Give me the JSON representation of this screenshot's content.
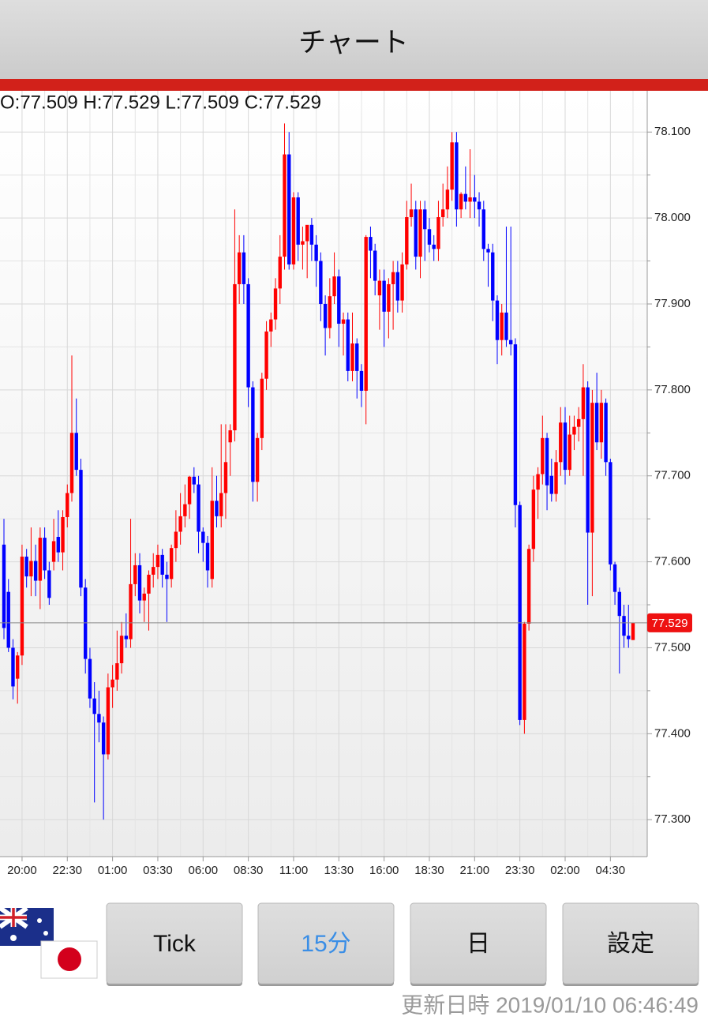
{
  "header": {
    "title": "チャート"
  },
  "chart_data": {
    "type": "candlestick",
    "ohlc_label": "O:77.509 H:77.529 L:77.509 C:77.529",
    "categories": [
      null,
      null,
      null,
      null,
      "20:00",
      null,
      null,
      null,
      null,
      null,
      null,
      null,
      null,
      null,
      "22:30",
      null,
      null,
      null,
      null,
      null,
      null,
      null,
      null,
      null,
      "01:00",
      null,
      null,
      null,
      null,
      null,
      null,
      null,
      null,
      null,
      "03:30",
      null,
      null,
      null,
      null,
      null,
      null,
      null,
      null,
      null,
      "06:00",
      null,
      null,
      null,
      null,
      null,
      null,
      null,
      null,
      null,
      "08:30",
      null,
      null,
      null,
      null,
      null,
      null,
      null,
      null,
      null,
      "11:00",
      null,
      null,
      null,
      null,
      null,
      null,
      null,
      null,
      null,
      "13:30",
      null,
      null,
      null,
      null,
      null,
      null,
      null,
      null,
      null,
      "16:00",
      null,
      null,
      null,
      null,
      null,
      null,
      null,
      null,
      null,
      "18:30",
      null,
      null,
      null,
      null,
      null,
      null,
      null,
      null,
      null,
      "21:00",
      null,
      null,
      null,
      null,
      null,
      null,
      null,
      null,
      null,
      "23:30",
      null,
      null,
      null,
      null,
      null,
      null,
      null,
      null,
      null,
      "02:00",
      null,
      null,
      null,
      null,
      null,
      null,
      null,
      null,
      null,
      "04:30",
      null,
      null,
      null,
      null,
      null
    ],
    "open": [
      77.62,
      77.565,
      77.5,
      77.464,
      77.491,
      77.606,
      77.583,
      77.601,
      77.578,
      77.628,
      77.59,
      77.6,
      77.629,
      77.611,
      77.652,
      77.68,
      77.75,
      77.707,
      77.57,
      77.487,
      77.441,
      77.423,
      77.413,
      77.376,
      77.454,
      77.463,
      77.482,
      77.514,
      77.51,
      77.574,
      77.596,
      77.555,
      77.563,
      77.585,
      77.594,
      77.608,
      77.585,
      77.58,
      77.616,
      77.635,
      77.653,
      77.667,
      77.699,
      77.69,
      77.635,
      77.622,
      77.58,
      77.671,
      77.653,
      77.68,
      77.739,
      77.753,
      77.923,
      77.96,
      77.923,
      77.803,
      77.693,
      77.744,
      77.813,
      77.868,
      77.882,
      77.918,
      77.955,
      78.074,
      77.946,
      78.024,
      77.969,
      77.973,
      77.992,
      77.969,
      77.95,
      77.9,
      77.872,
      77.909,
      77.932,
      77.877,
      77.882,
      77.822,
      77.854,
      77.822,
      77.799,
      77.978,
      77.962,
      77.91,
      77.927,
      77.891,
      77.923,
      77.937,
      77.904,
      77.946,
      78.001,
      78.01,
      77.955,
      78.01,
      77.987,
      77.969,
      77.964,
      78.001,
      78.01,
      78.033,
      78.088,
      78.01,
      78.028,
      78.019,
      78.024,
      78.019,
      78.01,
      77.964,
      77.96,
      77.904,
      77.858,
      77.89,
      77.858,
      77.853,
      77.666,
      77.416,
      77.528,
      77.615,
      77.684,
      77.702,
      77.744,
      77.7,
      77.679,
      77.716,
      77.762,
      77.707,
      77.748,
      77.757,
      77.766,
      77.803,
      77.634,
      77.785,
      77.739,
      77.785,
      77.716,
      77.597,
      77.565,
      77.537,
      77.514,
      77.509
    ],
    "high": [
      77.65,
      77.58,
      77.51,
      77.495,
      77.62,
      77.615,
      77.64,
      77.62,
      77.64,
      77.64,
      77.6,
      77.65,
      77.66,
      77.66,
      77.69,
      77.84,
      77.79,
      77.72,
      77.58,
      77.5,
      77.46,
      77.45,
      77.42,
      77.47,
      77.48,
      77.52,
      77.53,
      77.54,
      77.65,
      77.61,
      77.61,
      77.57,
      77.59,
      77.61,
      77.62,
      77.615,
      77.6,
      77.62,
      77.66,
      77.68,
      77.69,
      77.7,
      77.71,
      77.7,
      77.64,
      77.63,
      77.71,
      77.7,
      77.76,
      77.76,
      77.76,
      78.01,
      77.98,
      77.98,
      77.93,
      77.81,
      77.75,
      77.82,
      77.88,
      77.89,
      77.93,
      77.98,
      78.11,
      78.1,
      78.03,
      78.03,
      77.99,
      77.99,
      78.0,
      77.98,
      77.96,
      77.91,
      77.93,
      77.96,
      77.94,
      77.89,
      77.89,
      77.89,
      77.86,
      77.83,
      77.98,
      77.99,
      77.97,
      77.94,
      77.94,
      77.93,
      77.95,
      77.95,
      77.96,
      78.02,
      78.04,
      78.02,
      78.02,
      78.02,
      78.0,
      77.98,
      78.02,
      78.04,
      78.06,
      78.1,
      78.1,
      78.03,
      78.06,
      78.08,
      78.05,
      78.03,
      78.02,
      77.97,
      77.97,
      77.91,
      77.9,
      77.99,
      77.99,
      77.86,
      77.67,
      77.53,
      77.62,
      77.7,
      77.71,
      77.77,
      77.75,
      77.72,
      77.73,
      77.78,
      77.78,
      77.77,
      77.77,
      77.78,
      77.83,
      77.81,
      77.8,
      77.82,
      77.8,
      77.79,
      77.72,
      77.6,
      77.57,
      77.55,
      77.55,
      77.529
    ],
    "low": [
      77.51,
      77.495,
      77.44,
      77.435,
      77.48,
      77.57,
      77.56,
      77.56,
      77.545,
      77.58,
      77.55,
      77.59,
      77.6,
      77.59,
      77.64,
      77.67,
      77.7,
      77.56,
      77.47,
      77.43,
      77.32,
      77.39,
      77.3,
      77.37,
      77.43,
      77.45,
      77.47,
      77.5,
      77.5,
      77.56,
      77.54,
      77.53,
      77.52,
      77.57,
      77.58,
      77.57,
      77.53,
      77.57,
      77.6,
      77.62,
      77.64,
      77.65,
      77.68,
      77.61,
      77.6,
      77.57,
      77.57,
      77.64,
      77.64,
      77.65,
      77.7,
      77.74,
      77.9,
      77.9,
      77.78,
      77.67,
      77.67,
      77.73,
      77.8,
      77.85,
      77.87,
      77.9,
      77.94,
      77.94,
      77.94,
      77.95,
      77.94,
      77.93,
      77.95,
      77.92,
      77.88,
      77.84,
      77.86,
      77.9,
      77.85,
      77.84,
      77.81,
      77.81,
      77.79,
      77.78,
      77.76,
      77.93,
      77.91,
      77.87,
      77.85,
      77.86,
      77.87,
      77.89,
      77.89,
      77.94,
      77.99,
      77.94,
      77.93,
      77.95,
      77.96,
      77.95,
      77.95,
      77.99,
      78.0,
      78.02,
      77.99,
      78.0,
      78.01,
      78.0,
      78.0,
      77.99,
      77.95,
      77.92,
      77.88,
      77.83,
      77.84,
      77.85,
      77.84,
      77.64,
      77.41,
      77.4,
      77.52,
      77.6,
      77.65,
      77.69,
      77.66,
      77.67,
      77.67,
      77.7,
      77.69,
      77.7,
      77.73,
      77.74,
      77.7,
      77.55,
      77.56,
      77.73,
      77.72,
      77.7,
      77.59,
      77.55,
      77.47,
      77.5,
      77.5,
      77.509
    ],
    "close": [
      77.523,
      77.5,
      77.455,
      77.491,
      77.606,
      77.583,
      77.601,
      77.578,
      77.628,
      77.59,
      77.558,
      77.624,
      77.611,
      77.652,
      77.68,
      77.75,
      77.707,
      77.57,
      77.487,
      77.441,
      77.423,
      77.413,
      77.376,
      77.454,
      77.463,
      77.482,
      77.514,
      77.51,
      77.574,
      77.596,
      77.555,
      77.563,
      77.585,
      77.594,
      77.608,
      77.585,
      77.58,
      77.616,
      77.635,
      77.653,
      77.667,
      77.699,
      77.69,
      77.635,
      77.622,
      77.59,
      77.671,
      77.653,
      77.68,
      77.716,
      77.753,
      77.923,
      77.96,
      77.923,
      77.803,
      77.693,
      77.744,
      77.813,
      77.868,
      77.882,
      77.918,
      77.955,
      78.074,
      77.946,
      78.024,
      77.969,
      77.973,
      77.992,
      77.969,
      77.95,
      77.9,
      77.872,
      77.909,
      77.932,
      77.877,
      77.882,
      77.822,
      77.854,
      77.822,
      77.799,
      77.978,
      77.962,
      77.927,
      77.927,
      77.891,
      77.923,
      77.937,
      77.904,
      77.946,
      78.001,
      78.01,
      77.955,
      78.01,
      77.987,
      77.969,
      77.964,
      78.001,
      78.01,
      78.033,
      78.088,
      78.01,
      78.028,
      78.019,
      78.024,
      78.019,
      78.01,
      77.964,
      77.96,
      77.904,
      77.858,
      77.89,
      77.858,
      77.853,
      77.666,
      77.416,
      77.528,
      77.615,
      77.684,
      77.702,
      77.744,
      77.689,
      77.679,
      77.716,
      77.762,
      77.707,
      77.748,
      77.757,
      77.766,
      77.803,
      77.634,
      77.785,
      77.739,
      77.785,
      77.716,
      77.597,
      77.565,
      77.537,
      77.514,
      77.51,
      77.529
    ],
    "up_color": "#ff0000",
    "down_color": "#0000ff",
    "last_price": 77.529,
    "last_price_color": "#ee1111",
    "ylim": [
      77.257,
      78.148
    ],
    "yticks": [
      {
        "value": 77.3,
        "label": "77.300"
      },
      {
        "value": 77.4,
        "label": "77.400"
      },
      {
        "value": 77.5,
        "label": "77.500"
      },
      {
        "value": 77.6,
        "label": "77.600"
      },
      {
        "value": 77.7,
        "label": "77.700"
      },
      {
        "value": 77.8,
        "label": "77.800"
      },
      {
        "value": 77.9,
        "label": "77.900"
      },
      {
        "value": 78.0,
        "label": "78.000"
      },
      {
        "value": 78.1,
        "label": "78.100"
      }
    ],
    "grid": true
  },
  "buttons": [
    "Tick",
    "15分",
    "日",
    "設定"
  ],
  "selected_button": 1,
  "footer": {
    "updated": "更新日時 2019/01/10 06:46:49"
  }
}
